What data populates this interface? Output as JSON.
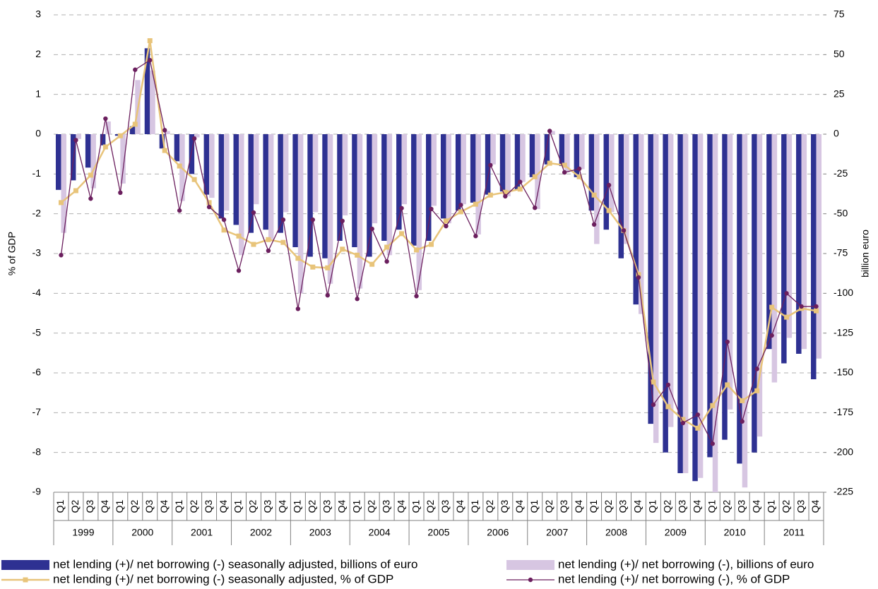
{
  "chart_data": {
    "type": "combo",
    "y_label": "% of GDP",
    "y2_label": "billion euro",
    "ylim": [
      -9,
      3
    ],
    "yticks": [
      -9,
      -8,
      -7,
      -6,
      -5,
      -4,
      -3,
      -2,
      -1,
      0,
      1,
      2,
      3
    ],
    "y2lim": [
      -225,
      75
    ],
    "y2ticks": [
      -225,
      -200,
      -175,
      -150,
      -125,
      -100,
      -75,
      -50,
      -25,
      0,
      25,
      50,
      75
    ],
    "grid": true,
    "categories": [
      "Q1",
      "Q2",
      "Q3",
      "Q4",
      "Q1",
      "Q2",
      "Q3",
      "Q4",
      "Q1",
      "Q2",
      "Q3",
      "Q4",
      "Q1",
      "Q2",
      "Q3",
      "Q4",
      "Q1",
      "Q2",
      "Q3",
      "Q4",
      "Q1",
      "Q2",
      "Q3",
      "Q4",
      "Q1",
      "Q2",
      "Q3",
      "Q4",
      "Q1",
      "Q2",
      "Q3",
      "Q4",
      "Q1",
      "Q2",
      "Q3",
      "Q4",
      "Q1",
      "Q2",
      "Q3",
      "Q4",
      "Q1",
      "Q2",
      "Q3",
      "Q4",
      "Q1",
      "Q2",
      "Q3",
      "Q4",
      "Q1",
      "Q2",
      "Q3",
      "Q4"
    ],
    "category_groups": [
      "1999",
      "2000",
      "2001",
      "2002",
      "2003",
      "2004",
      "2005",
      "2006",
      "2007",
      "2008",
      "2009",
      "2010",
      "2011"
    ],
    "series": [
      {
        "name": "net lending (+)/ net borrowing (-) seasonally adjusted, billions of euro",
        "type": "bar",
        "axis": "y2",
        "color": "#2e3192",
        "values": [
          -35,
          -29,
          -21,
          -7,
          -1,
          5,
          54,
          -9,
          -17,
          -25,
          -38,
          -53,
          -57,
          -62,
          -60,
          -62,
          -71,
          -77,
          -78,
          -67,
          -71,
          -77,
          -67,
          -60,
          -70,
          -67,
          -53,
          -48,
          -43,
          -38,
          -36,
          -35,
          -27,
          -19,
          -20,
          -27,
          -48,
          -60,
          -78,
          -107,
          -182,
          -200,
          -213,
          -218,
          -203,
          -192,
          -207,
          -200,
          -135,
          -144,
          -138,
          -154
        ]
      },
      {
        "name": "net lending (+)/ net borrowing (-), billions of euro",
        "type": "bar",
        "axis": "y2",
        "color": "#d7c6e2",
        "values": [
          -62,
          -3,
          -34,
          8,
          -31,
          34,
          40,
          2,
          -42,
          -2,
          -40,
          -48,
          -76,
          -44,
          -66,
          -49,
          -100,
          -49,
          -94,
          -51,
          -97,
          -56,
          -76,
          -44,
          -98,
          -45,
          -56,
          -44,
          -63,
          -19,
          -39,
          -30,
          -47,
          2,
          -24,
          -22,
          -69,
          -49,
          -69,
          -113,
          -194,
          -184,
          -213,
          -216,
          -225,
          -173,
          -222,
          -190,
          -156,
          -128,
          -135,
          -141
        ]
      },
      {
        "name": "net lending (+)/ net borrowing (-) seasonally adjusted, % of GDP",
        "type": "line",
        "marker": "square",
        "color": "#e8c47a",
        "values": [
          -1.72,
          -1.42,
          -1.03,
          -0.32,
          -0.04,
          0.25,
          2.35,
          -0.41,
          -0.8,
          -1.14,
          -1.72,
          -2.41,
          -2.56,
          -2.77,
          -2.65,
          -2.72,
          -3.12,
          -3.34,
          -3.36,
          -2.89,
          -3.04,
          -3.27,
          -2.84,
          -2.5,
          -2.91,
          -2.77,
          -2.18,
          -1.95,
          -1.76,
          -1.53,
          -1.46,
          -1.38,
          -1.07,
          -0.73,
          -0.78,
          -1.07,
          -1.53,
          -1.92,
          -2.42,
          -3.53,
          -6.23,
          -6.85,
          -7.17,
          -7.39,
          -6.82,
          -6.3,
          -6.7,
          -6.45,
          -4.35,
          -4.6,
          -4.38,
          -4.44
        ]
      },
      {
        "name": "net lending (+)/ net borrowing (-), % of GDP",
        "type": "line",
        "marker": "circle",
        "color": "#6b1f5e",
        "values": [
          -3.04,
          -0.15,
          -1.62,
          0.39,
          -1.47,
          1.62,
          1.86,
          0.1,
          -1.92,
          -0.11,
          -1.83,
          -2.15,
          -3.43,
          -1.97,
          -2.93,
          -2.15,
          -4.39,
          -2.15,
          -4.05,
          -2.18,
          -4.14,
          -2.38,
          -3.2,
          -1.86,
          -4.07,
          -1.88,
          -2.31,
          -1.78,
          -2.56,
          -0.78,
          -1.56,
          -1.2,
          -1.85,
          0.08,
          -0.96,
          -0.87,
          -2.27,
          -1.28,
          -2.42,
          -3.6,
          -6.8,
          -6.3,
          -7.26,
          -7.05,
          -7.78,
          -5.22,
          -7.22,
          -5.9,
          -5.06,
          -4.0,
          -4.33,
          -4.33
        ]
      }
    ]
  }
}
